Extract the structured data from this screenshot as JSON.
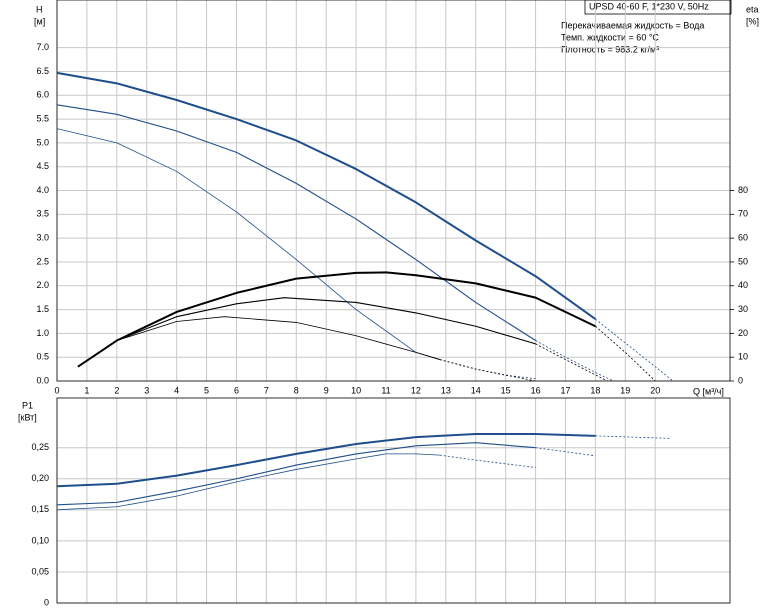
{
  "chart_data": [
    {
      "type": "line",
      "title": "UPSD 40-60 F, 1*230 V, 50Hz",
      "notes": [
        "Перекачиваемая жидкость = Вода",
        "Темп. жидкости = 60 °C",
        "Плотность = 983.2 кг/м³"
      ],
      "ylabel": "H",
      "yunit": "[м]",
      "y2label": "eta",
      "y2unit": "[%]",
      "xlabel": "Q [м³/ч]",
      "xlim": [
        0,
        22.5
      ],
      "xticks": [
        0,
        1,
        2,
        3,
        4,
        5,
        6,
        7,
        8,
        9,
        10,
        11,
        12,
        13,
        14,
        15,
        16,
        17,
        18,
        19,
        20
      ],
      "ylim": [
        0,
        8
      ],
      "yticks": [
        {
          "value": 0,
          "label": "0.0"
        },
        0.5,
        {
          "value": 1,
          "label": "1.0"
        },
        1.5,
        {
          "value": 2,
          "label": "2.0"
        },
        2.5,
        {
          "value": 3,
          "label": "3.0"
        },
        3.5,
        {
          "value": 4,
          "label": "4.0"
        },
        4.5,
        {
          "value": 5,
          "label": "5.0"
        },
        5.5,
        {
          "value": 6,
          "label": "6.0"
        },
        6.5,
        {
          "value": 7,
          "label": "7.0"
        }
      ],
      "y2lim": [
        0,
        160
      ],
      "y2ticks": [
        0,
        10,
        20,
        30,
        40,
        50,
        60,
        70,
        80
      ],
      "grid": true,
      "series": [
        {
          "color": "#1f4e8c",
          "width": 2,
          "x": [
            0,
            2,
            4,
            6,
            8,
            10,
            12,
            14,
            16,
            18
          ],
          "values": [
            6.47,
            6.25,
            5.9,
            5.5,
            5.05,
            4.45,
            3.75,
            2.95,
            2.2,
            1.3
          ]
        },
        {
          "color": "#1f4e8c",
          "width": 0.8,
          "dashed": true,
          "x": [
            18,
            19,
            20,
            20.6
          ],
          "values": [
            1.3,
            0.8,
            0.3,
            0
          ]
        },
        {
          "color": "#1f4e8c",
          "width": 1.1,
          "x": [
            0,
            2,
            4,
            6,
            8,
            10,
            12,
            14,
            16
          ],
          "values": [
            5.8,
            5.6,
            5.25,
            4.8,
            4.15,
            3.4,
            2.55,
            1.65,
            0.85
          ]
        },
        {
          "color": "#1f4e8c",
          "width": 0.8,
          "dashed": true,
          "x": [
            16,
            17,
            18,
            18.6
          ],
          "values": [
            0.85,
            0.5,
            0.18,
            0
          ]
        },
        {
          "color": "#1f4e8c",
          "width": 0.8,
          "x": [
            0,
            2,
            4,
            6,
            8,
            10,
            12,
            12.8
          ],
          "values": [
            5.3,
            5.0,
            4.4,
            3.55,
            2.55,
            1.5,
            0.6,
            0.45
          ]
        },
        {
          "color": "#1f4e8c",
          "width": 0.8,
          "dashed": true,
          "x": [
            12.8,
            14,
            15,
            16
          ],
          "values": [
            0.45,
            0.25,
            0.12,
            0.05
          ]
        },
        {
          "color": "#000000",
          "width": 2,
          "axis": "y2",
          "x": [
            0.7,
            2,
            4,
            6,
            8,
            10,
            11,
            12,
            14,
            16,
            18
          ],
          "values": [
            6,
            17,
            29,
            37,
            43,
            45.4,
            45.6,
            44.4,
            41,
            35,
            23
          ]
        },
        {
          "color": "#000000",
          "width": 0.8,
          "dashed": true,
          "axis": "y2",
          "x": [
            18,
            19,
            20
          ],
          "values": [
            23,
            12,
            0
          ]
        },
        {
          "color": "#000000",
          "width": 1.1,
          "axis": "y2",
          "x": [
            0.7,
            2,
            4,
            6,
            7.6,
            10,
            12,
            14,
            16
          ],
          "values": [
            6,
            17,
            27,
            32.4,
            35,
            33,
            28.6,
            23,
            15.6
          ]
        },
        {
          "color": "#000000",
          "width": 0.8,
          "dashed": true,
          "axis": "y2",
          "x": [
            16,
            17,
            18.4
          ],
          "values": [
            15.6,
            9,
            0
          ]
        },
        {
          "color": "#000000",
          "width": 0.8,
          "axis": "y2",
          "x": [
            0.7,
            2,
            4,
            5.6,
            8,
            10,
            12,
            12.8
          ],
          "values": [
            6,
            17,
            25,
            27,
            24.6,
            19,
            12,
            9
          ]
        },
        {
          "color": "#000000",
          "width": 0.8,
          "dashed": true,
          "axis": "y2",
          "x": [
            12.8,
            14,
            16
          ],
          "values": [
            9,
            5,
            0
          ]
        }
      ]
    },
    {
      "type": "line",
      "ylabel": "P1",
      "yunit": "[кВт]",
      "xlim": [
        0,
        22.5
      ],
      "ylim": [
        0,
        0.33
      ],
      "yticks": [
        0,
        {
          "value": 0.05,
          "label": "0,05"
        },
        {
          "value": 0.1,
          "label": "0,10"
        },
        {
          "value": 0.15,
          "label": "0,15"
        },
        {
          "value": 0.2,
          "label": "0,20"
        },
        {
          "value": 0.25,
          "label": "0,25"
        }
      ],
      "grid": true,
      "series": [
        {
          "color": "#1f4e8c",
          "width": 2,
          "x": [
            0,
            2,
            4,
            6,
            8,
            10,
            12,
            14,
            16,
            18
          ],
          "values": [
            0.188,
            0.192,
            0.205,
            0.222,
            0.24,
            0.256,
            0.267,
            0.272,
            0.272,
            0.269
          ]
        },
        {
          "color": "#1f4e8c",
          "width": 0.8,
          "dashed": true,
          "x": [
            18,
            20.5
          ],
          "values": [
            0.269,
            0.265
          ]
        },
        {
          "color": "#1f4e8c",
          "width": 1.1,
          "x": [
            0,
            2,
            4,
            6,
            8,
            10,
            12,
            14,
            16
          ],
          "values": [
            0.158,
            0.162,
            0.18,
            0.2,
            0.222,
            0.24,
            0.253,
            0.258,
            0.25
          ]
        },
        {
          "color": "#1f4e8c",
          "width": 0.8,
          "dashed": true,
          "x": [
            16,
            18
          ],
          "values": [
            0.25,
            0.237
          ]
        },
        {
          "color": "#1f4e8c",
          "width": 0.8,
          "x": [
            0,
            2,
            4,
            6,
            8,
            10,
            11,
            12,
            12.8
          ],
          "values": [
            0.15,
            0.155,
            0.172,
            0.195,
            0.215,
            0.232,
            0.24,
            0.24,
            0.238
          ]
        },
        {
          "color": "#1f4e8c",
          "width": 0.8,
          "dashed": true,
          "x": [
            12.8,
            14,
            16
          ],
          "values": [
            0.238,
            0.23,
            0.218
          ]
        }
      ]
    }
  ]
}
